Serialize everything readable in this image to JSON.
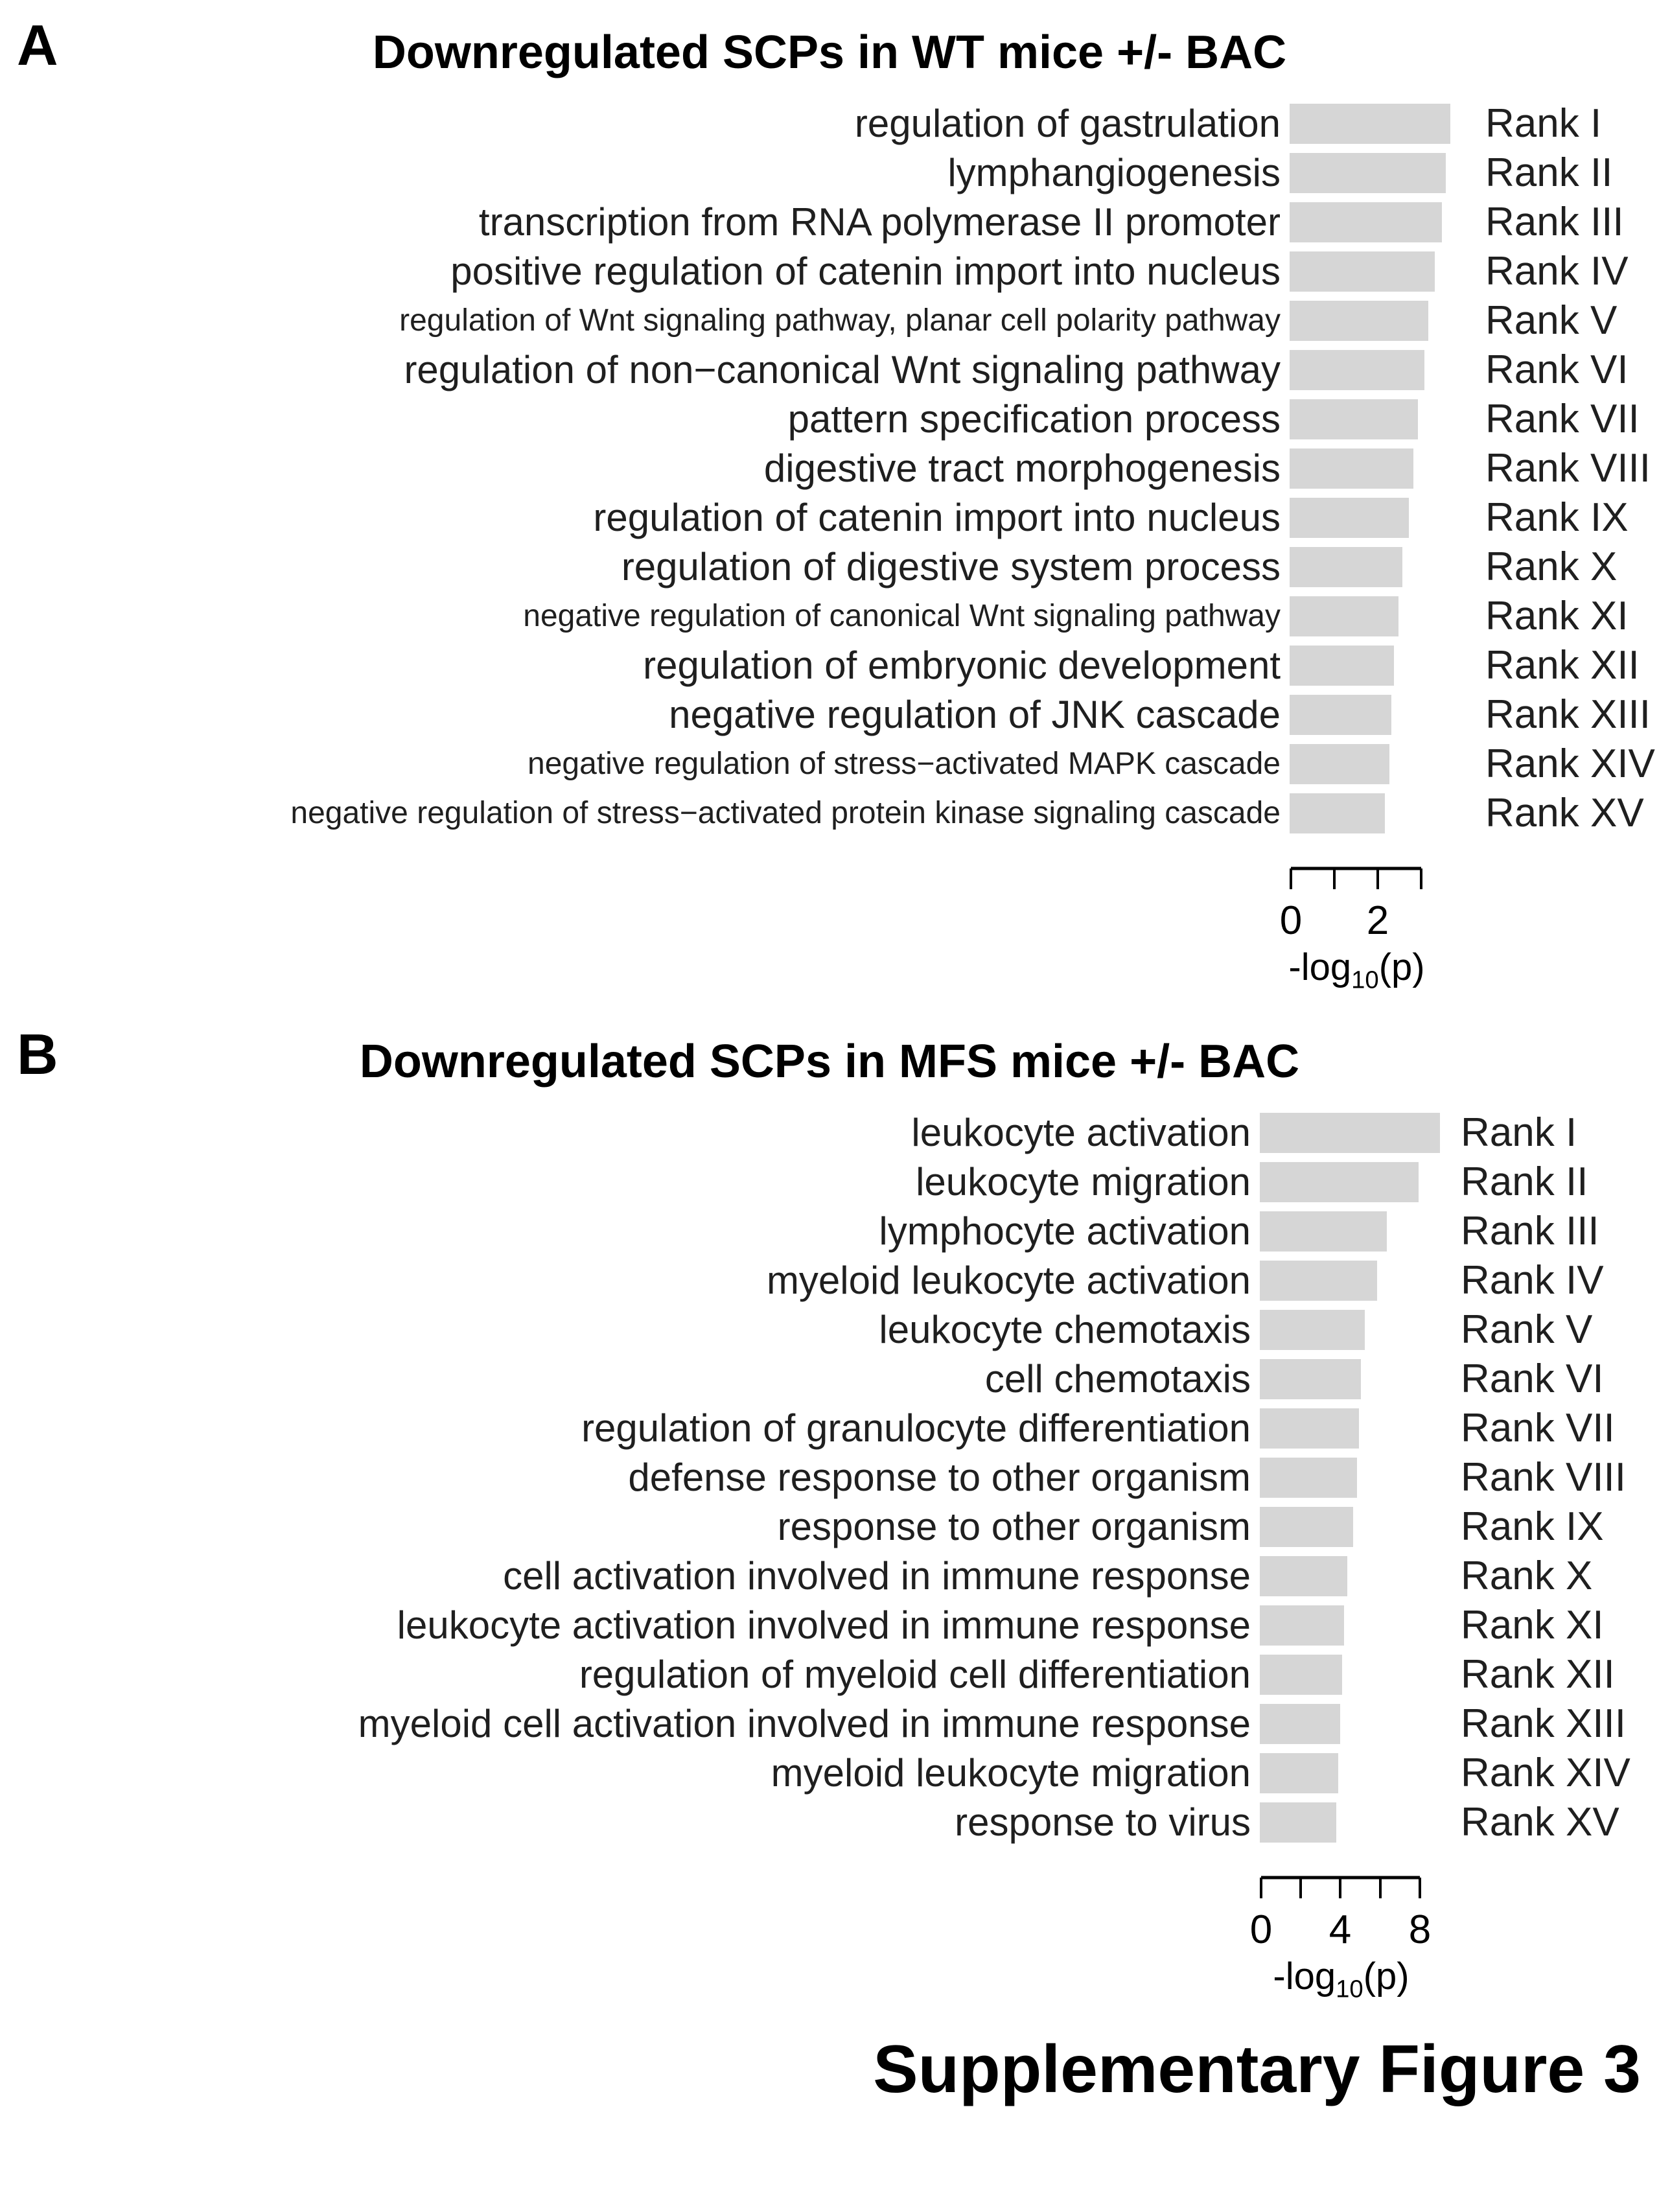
{
  "figure": {
    "caption": "Supplementary Figure 3"
  },
  "panels": [
    {
      "letter": "A",
      "title": "Downregulated SCPs in WT mice +/- BAC"
    },
    {
      "letter": "B",
      "title": "Downregulated SCPs in MFS mice +/- BAC"
    }
  ],
  "chart_data": [
    {
      "type": "bar",
      "orientation": "horizontal",
      "panel": "A",
      "title": "Downregulated SCPs in WT mice +/- BAC",
      "categories": [
        "regulation of gastrulation",
        "lymphangiogenesis",
        "transcription from RNA polymerase II promoter",
        "positive regulation of catenin import into nucleus",
        "regulation of Wnt signaling pathway, planar cell polarity pathway",
        "regulation of non−canonical Wnt signaling pathway",
        "pattern specification process",
        "digestive tract morphogenesis",
        "regulation of catenin import into nucleus",
        "regulation of digestive system process",
        "negative regulation of canonical Wnt signaling pathway",
        "regulation of embryonic development",
        "negative regulation of JNK cascade",
        "negative regulation of stress−activated MAPK cascade",
        "negative regulation of stress−activated protein kinase signaling cascade"
      ],
      "rank_labels": [
        "Rank I",
        "Rank II",
        "Rank III",
        "Rank IV",
        "Rank V",
        "Rank VI",
        "Rank VII",
        "Rank VIII",
        "Rank IX",
        "Rank X",
        "Rank XI",
        "Rank XII",
        "Rank XIII",
        "Rank XIV",
        "Rank XV"
      ],
      "values": [
        3.7,
        3.6,
        3.5,
        3.35,
        3.2,
        3.1,
        2.95,
        2.85,
        2.75,
        2.6,
        2.5,
        2.4,
        2.35,
        2.3,
        2.2
      ],
      "xlabel": "-log10(p)",
      "xlim": [
        0,
        3
      ],
      "xticks": [
        0,
        1,
        2,
        3
      ],
      "xtick_labels": [
        "0",
        "",
        "2",
        ""
      ],
      "bar_color": "#d6d6d6",
      "grid": false,
      "legend": "none"
    },
    {
      "type": "bar",
      "orientation": "horizontal",
      "panel": "B",
      "title": "Downregulated SCPs in MFS mice +/- BAC",
      "categories": [
        "leukocyte activation",
        "leukocyte migration",
        "lymphocyte activation",
        "myeloid leukocyte activation",
        "leukocyte chemotaxis",
        "cell chemotaxis",
        "regulation of granulocyte differentiation",
        "defense response to other organism",
        "response to other organism",
        "cell activation involved in immune response",
        "leukocyte activation involved in immune response",
        "regulation of myeloid cell differentiation",
        "myeloid cell activation involved in immune response",
        "myeloid leukocyte migration",
        "response to virus"
      ],
      "rank_labels": [
        "Rank I",
        "Rank II",
        "Rank III",
        "Rank IV",
        "Rank V",
        "Rank VI",
        "Rank VII",
        "Rank VIII",
        "Rank IX",
        "Rank X",
        "Rank XI",
        "Rank XII",
        "Rank XIII",
        "Rank XIV",
        "Rank XV"
      ],
      "values": [
        9.1,
        8.0,
        6.4,
        5.9,
        5.3,
        5.1,
        5.0,
        4.9,
        4.7,
        4.4,
        4.25,
        4.15,
        4.05,
        3.95,
        3.85
      ],
      "xlabel": "-log10(p)",
      "xlim": [
        0,
        8
      ],
      "xticks": [
        0,
        2,
        4,
        6,
        8
      ],
      "xtick_labels": [
        "0",
        "",
        "4",
        "",
        "8"
      ],
      "bar_color": "#d6d6d6",
      "grid": false,
      "legend": "none"
    }
  ]
}
